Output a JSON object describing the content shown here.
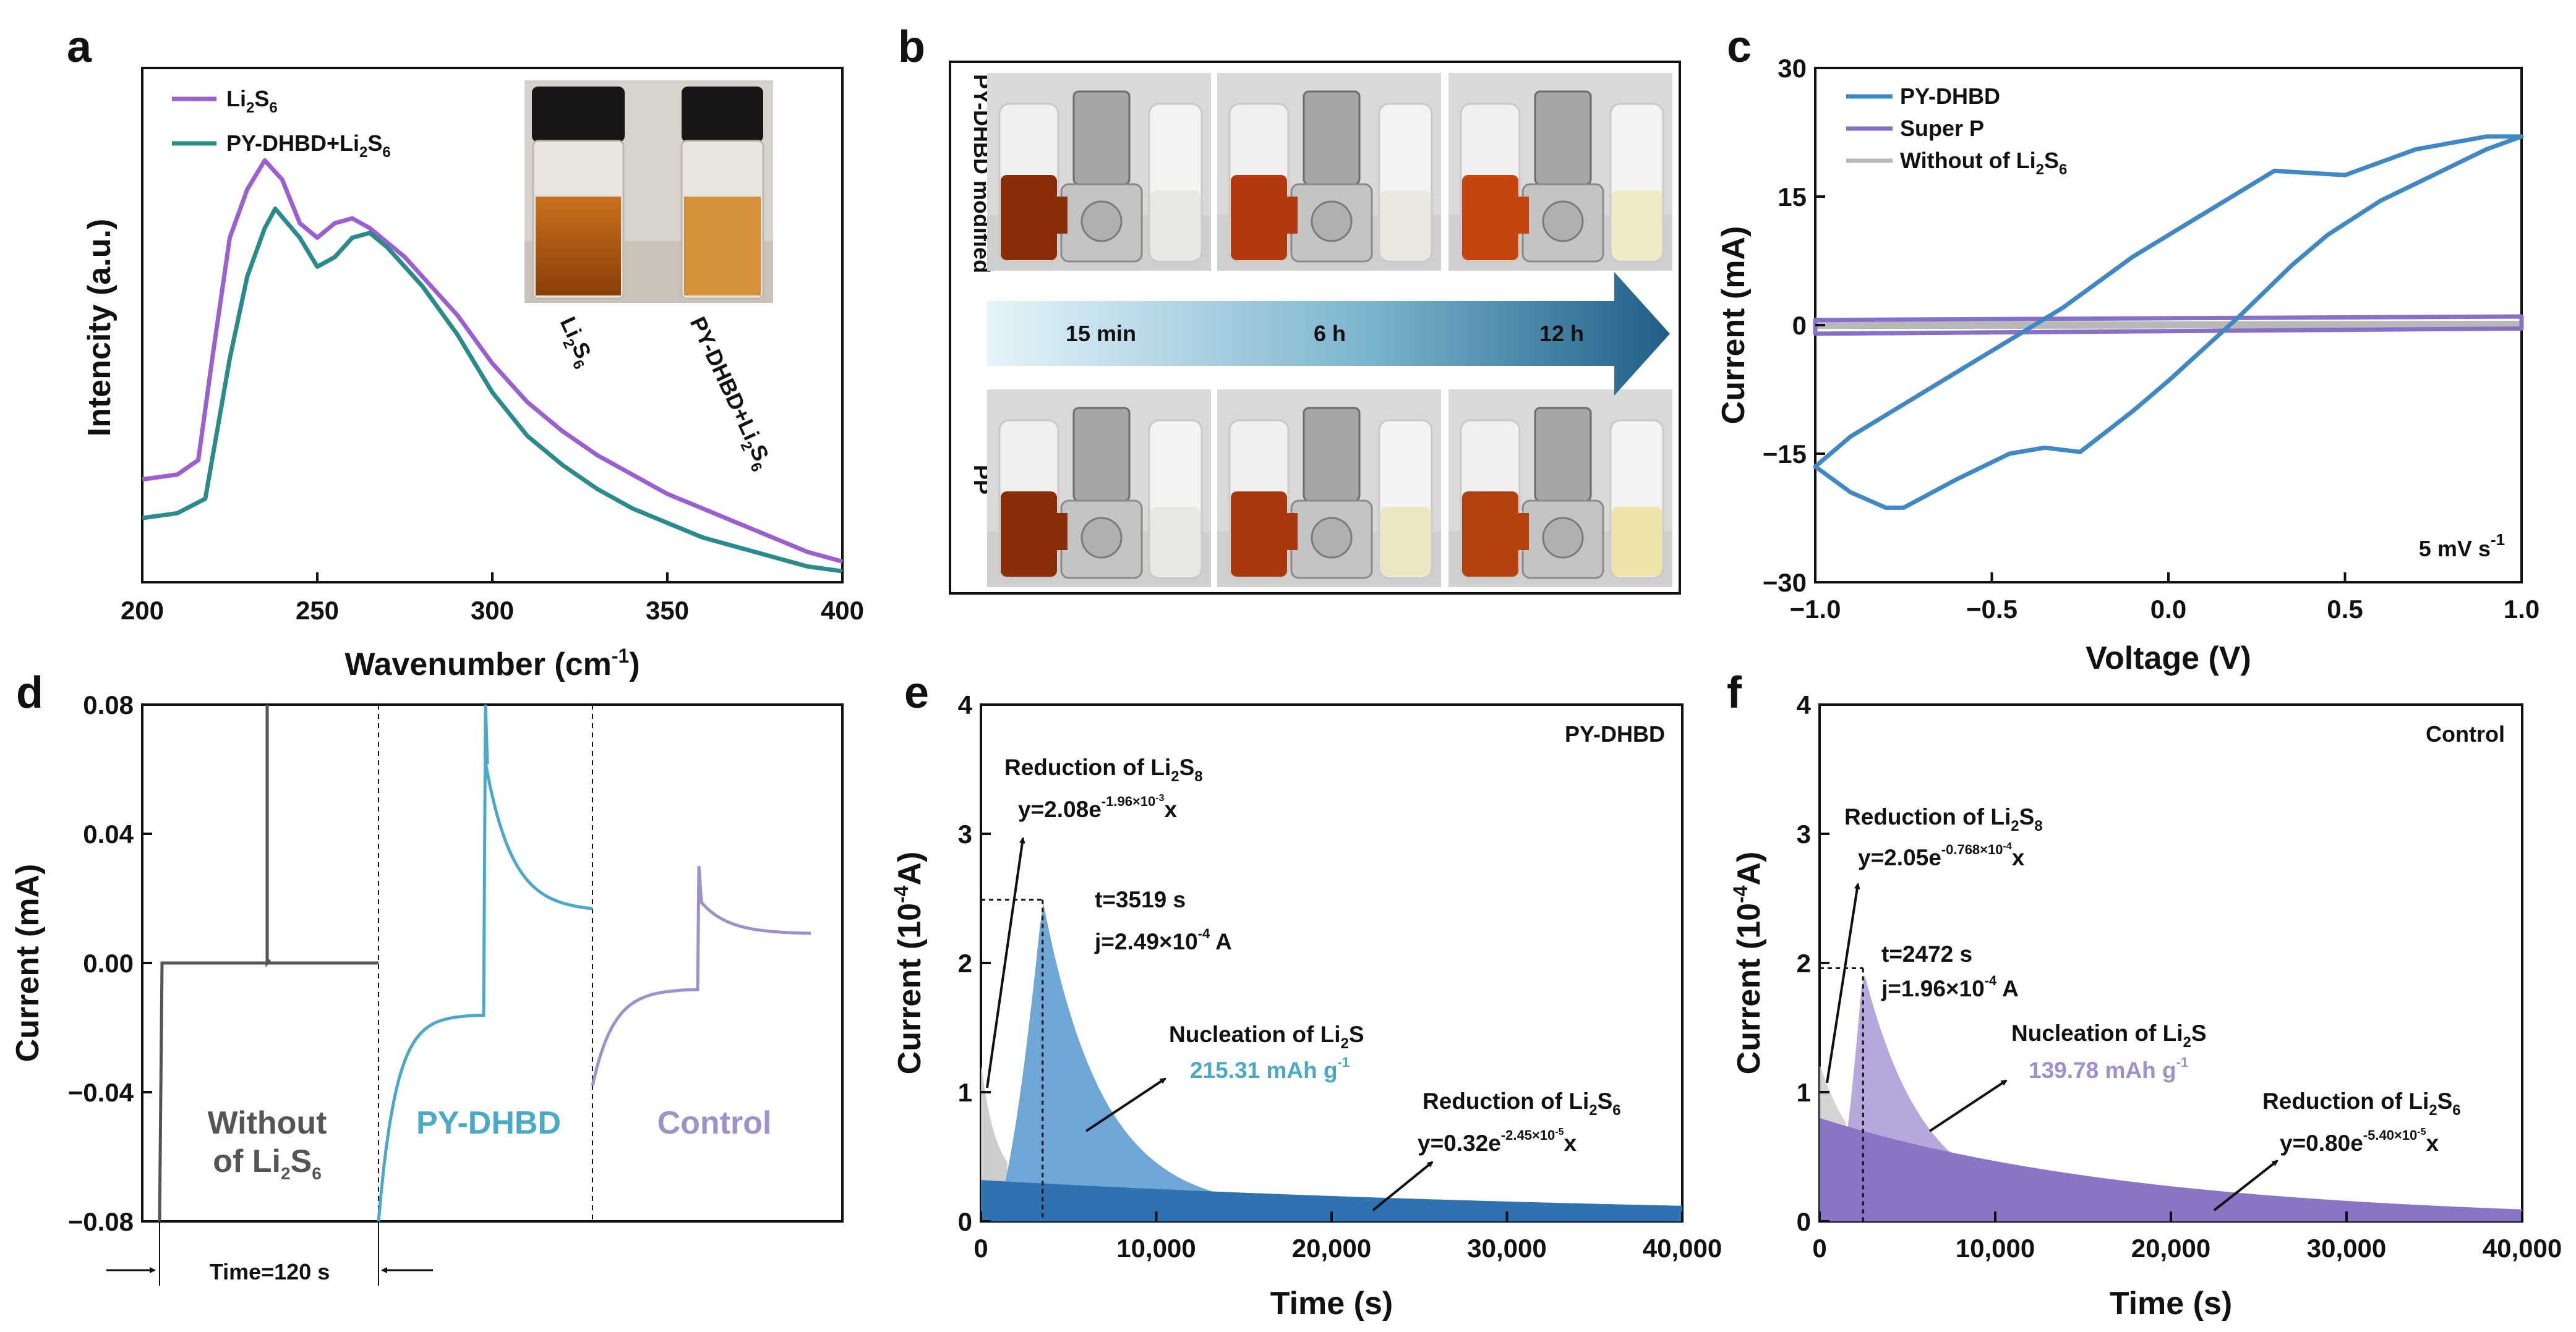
{
  "colors": {
    "purple": "#9b5fd0",
    "teal": "#2a8a8c",
    "blue": "#3f88c5",
    "superP": "#8a6fc8",
    "gray": "#b8b8b8",
    "darkgray": "#555555",
    "cyan": "#4aa8c8",
    "lilac": "#9d90cc",
    "navy": "#1f5f87"
  },
  "panel_labels": {
    "a": "a",
    "b": "b",
    "c": "c",
    "d": "d",
    "e": "e",
    "f": "f"
  },
  "chart_data": [
    {
      "id": "a",
      "type": "line",
      "xlabel_main": "Wavenumber (cm",
      "xlabel_sup": "-1",
      "xlabel_end": ")",
      "ylabel": "Intencity (a.u.)",
      "xlim": [
        200,
        400
      ],
      "xticks": [
        "200",
        "250",
        "300",
        "350",
        "400"
      ],
      "series": [
        {
          "name": "Li2S6",
          "label_main": "Li",
          "label_sub1": "2",
          "label_mid": "S",
          "label_sub2": "6",
          "color": "#9b5fd0",
          "x": [
            200,
            210,
            216,
            220,
            225,
            230,
            235,
            240,
            245,
            250,
            255,
            260,
            265,
            270,
            275,
            280,
            290,
            300,
            310,
            320,
            330,
            340,
            350,
            360,
            370,
            380,
            390,
            400
          ],
          "y": [
            0.2,
            0.21,
            0.24,
            0.45,
            0.7,
            0.8,
            0.86,
            0.82,
            0.73,
            0.7,
            0.73,
            0.74,
            0.72,
            0.69,
            0.66,
            0.62,
            0.54,
            0.44,
            0.36,
            0.3,
            0.25,
            0.21,
            0.17,
            0.14,
            0.11,
            0.08,
            0.05,
            0.03
          ]
        },
        {
          "name": "PY-DHBD+Li2S6",
          "label_main": "PY-DHBD+Li",
          "label_sub1": "2",
          "label_mid": "S",
          "label_sub2": "6",
          "color": "#2a8a8c",
          "x": [
            200,
            210,
            218,
            225,
            230,
            235,
            238,
            245,
            250,
            255,
            260,
            265,
            270,
            275,
            280,
            290,
            300,
            310,
            320,
            330,
            340,
            350,
            360,
            370,
            380,
            390,
            400
          ],
          "y": [
            0.12,
            0.13,
            0.16,
            0.45,
            0.62,
            0.72,
            0.76,
            0.7,
            0.64,
            0.66,
            0.7,
            0.71,
            0.68,
            0.64,
            0.6,
            0.5,
            0.38,
            0.29,
            0.23,
            0.18,
            0.14,
            0.11,
            0.08,
            0.06,
            0.04,
            0.02,
            0.01
          ]
        }
      ],
      "inset_labels": {
        "left_main": "Li",
        "left_sub1": "2",
        "left_mid": "S",
        "left_sub2": "6",
        "right_main": "PY-DHBD+Li",
        "right_sub1": "2",
        "right_mid": "S",
        "right_sub2": "6"
      }
    },
    {
      "id": "b",
      "type": "photo",
      "row_top_label": "PY-DHBD modified",
      "row_bottom_label": "PP",
      "times": [
        "15 min",
        "6 h",
        "12 h"
      ]
    },
    {
      "id": "c",
      "type": "line",
      "xlabel": "Voltage (V)",
      "ylabel": "Current (mA)",
      "xlim": [
        -1.0,
        1.0
      ],
      "ylim": [
        -30,
        30
      ],
      "xticks": [
        "−1.0",
        "−0.5",
        "0.0",
        "0.5",
        "1.0"
      ],
      "yticks": [
        "30",
        "15",
        "0",
        "−15",
        "−30"
      ],
      "xtick_values": [
        -1.0,
        -0.5,
        0.0,
        0.5,
        1.0
      ],
      "ytick_values": [
        30,
        15,
        0,
        -15,
        -30
      ],
      "annotation_main": "5 mV s",
      "annotation_sup": "-1",
      "series": [
        {
          "name": "PY-DHBD",
          "color": "#3f88c5",
          "x": [
            -1.0,
            -0.9,
            -0.8,
            -0.75,
            -0.6,
            -0.45,
            -0.35,
            -0.25,
            -0.1,
            0.0,
            0.2,
            0.35,
            0.45,
            0.6,
            0.75,
            0.9,
            1.0,
            0.9,
            0.7,
            0.5,
            0.3,
            0.1,
            -0.1,
            -0.3,
            -0.5,
            -0.7,
            -0.9,
            -1.0
          ],
          "y": [
            -16.5,
            -19.5,
            -21.3,
            -21.3,
            -18.0,
            -15.0,
            -14.3,
            -14.8,
            -10.0,
            -6.5,
            1.0,
            7.0,
            10.5,
            14.5,
            17.5,
            20.5,
            22.0,
            22.0,
            20.5,
            17.5,
            18.0,
            13.0,
            8.0,
            2.0,
            -3.0,
            -8.0,
            -13.0,
            -16.5
          ]
        },
        {
          "name": "Super P",
          "color": "#8a6fc8",
          "x": [
            -1.0,
            1.0,
            1.0,
            -1.0,
            -1.0
          ],
          "y": [
            0.6,
            1.0,
            -0.4,
            -1.0,
            0.6
          ]
        },
        {
          "name_main": "Without of Li",
          "name_sub1": "2",
          "name_mid": "S",
          "name_sub2": "6",
          "color": "#b8b8b8",
          "x": [
            -1.0,
            1.0,
            1.0,
            -1.0,
            -1.0
          ],
          "y": [
            0.15,
            0.25,
            -0.1,
            -0.2,
            0.15
          ]
        }
      ]
    },
    {
      "id": "d",
      "type": "line",
      "ylabel": "Current (mA)",
      "ylim": [
        -0.08,
        0.08
      ],
      "yticks": [
        "0.08",
        "0.04",
        "0.00",
        "−0.04",
        "−0.08"
      ],
      "ytick_values": [
        0.08,
        0.04,
        0.0,
        -0.04,
        -0.08
      ],
      "series_labels": {
        "without_line1": "Without",
        "without_line2_main": "of Li",
        "without_sub1": "2",
        "without_mid": "S",
        "without_sub2": "6",
        "py": "PY-DHBD",
        "control": "Control"
      },
      "time_label": "Time=120 s"
    },
    {
      "id": "e",
      "type": "area",
      "xlabel": "Time (s)",
      "ylabel_main": "Current (10",
      "ylabel_sup": "-4",
      "ylabel_end": "A)",
      "xlim": [
        0,
        40000
      ],
      "ylim": [
        0,
        4
      ],
      "xticks": [
        "0",
        "10,000",
        "20,000",
        "30,000",
        "40,000"
      ],
      "yticks": [
        "4",
        "3",
        "2",
        "1",
        "0"
      ],
      "peak": {
        "t": 3519,
        "j": 2.49
      },
      "title": "PY-DHBD",
      "ann_t": "t=3519 s",
      "ann_j_main": "j=2.49×10",
      "ann_j_sup": "-4",
      "ann_j_end": " A",
      "ann_red8_main": "Reduction of Li",
      "ann_red8_sub1": "2",
      "ann_red8_mid": "S",
      "ann_red8_sub2": "8",
      "ann_eq8_main": "y=2.08e",
      "ann_eq8_sup": "-1.96×10",
      "ann_eq8_sup2": "-3",
      "ann_eq8_end": "x",
      "ann_nuc_main": "Nucleation of Li",
      "ann_nuc_sub": "2",
      "ann_nuc_end": "S",
      "ann_cap_main": "215.31 mAh g",
      "ann_cap_sup": "-1",
      "ann_red6_main": "Reduction of Li",
      "ann_red6_sub1": "2",
      "ann_red6_mid": "S",
      "ann_red6_sub2": "6",
      "ann_eq6_main": "y=0.32e",
      "ann_eq6_sup": "-2.45×10",
      "ann_eq6_sup2": "-5",
      "ann_eq6_end": "x",
      "exp_a": 0.32,
      "exp_k": 2.45e-05,
      "init_a": 2.08,
      "init_k": 0.00196
    },
    {
      "id": "f",
      "type": "area",
      "xlabel": "Time (s)",
      "ylabel_main": "Current (10",
      "ylabel_sup": "-4",
      "ylabel_end": "A)",
      "xlim": [
        0,
        40000
      ],
      "ylim": [
        0,
        4
      ],
      "xticks": [
        "0",
        "10,000",
        "20,000",
        "30,000",
        "40,000"
      ],
      "yticks": [
        "4",
        "3",
        "2",
        "1",
        "0"
      ],
      "peak": {
        "t": 2472,
        "j": 1.96
      },
      "title": "Control",
      "ann_t": "t=2472 s",
      "ann_j_main": "j=1.96×10",
      "ann_j_sup": "-4",
      "ann_j_end": " A",
      "ann_red8_main": "Reduction of Li",
      "ann_red8_sub1": "2",
      "ann_red8_mid": "S",
      "ann_red8_sub2": "8",
      "ann_eq8_main": "y=2.05e",
      "ann_eq8_sup": "-0.768×10",
      "ann_eq8_sup2": "-4",
      "ann_eq8_end": "x",
      "ann_nuc_main": "Nucleation of Li",
      "ann_nuc_sub": "2",
      "ann_nuc_end": "S",
      "ann_cap_main": "139.78 mAh g",
      "ann_cap_sup": "-1",
      "ann_red6_main": "Reduction of Li",
      "ann_red6_sub1": "2",
      "ann_red6_mid": "S",
      "ann_red6_sub2": "6",
      "ann_eq6_main": "y=0.80e",
      "ann_eq6_sup": "-5.40×10",
      "ann_eq6_sup2": "-5",
      "ann_eq6_end": "x",
      "exp_a": 0.8,
      "exp_k": 5.4e-05,
      "init_a": 2.05,
      "init_k": 0.000768
    }
  ]
}
